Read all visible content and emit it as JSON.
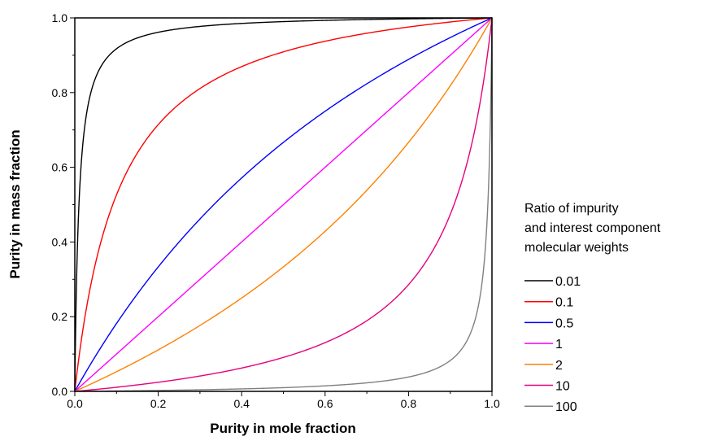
{
  "chart_data": {
    "type": "line",
    "xlabel": "Purity in mole fraction",
    "ylabel": "Purity in mass fraction",
    "xlim": [
      0,
      1
    ],
    "ylim": [
      0,
      1
    ],
    "x_ticks": [
      "0.0",
      "0.2",
      "0.4",
      "0.6",
      "0.8",
      "1.0"
    ],
    "y_ticks": [
      "0.0",
      "0.2",
      "0.4",
      "0.6",
      "0.8",
      "1.0"
    ],
    "grid": false,
    "legend_title": [
      "Ratio of impurity",
      "and interest component",
      "molecular weights"
    ],
    "legend_position": "right",
    "series": [
      {
        "name": "0.01",
        "ratio": 0.01,
        "color": "#000000"
      },
      {
        "name": "0.1",
        "ratio": 0.1,
        "color": "#ff0000"
      },
      {
        "name": "0.5",
        "ratio": 0.5,
        "color": "#0000ff"
      },
      {
        "name": "1",
        "ratio": 1,
        "color": "#ff00ff"
      },
      {
        "name": "2",
        "ratio": 2,
        "color": "#ff8000"
      },
      {
        "name": "10",
        "ratio": 10,
        "color": "#e6007e"
      },
      {
        "name": "100",
        "ratio": 100,
        "color": "#808080"
      }
    ],
    "formula": "y = x / (x + r * (1 - x))"
  }
}
